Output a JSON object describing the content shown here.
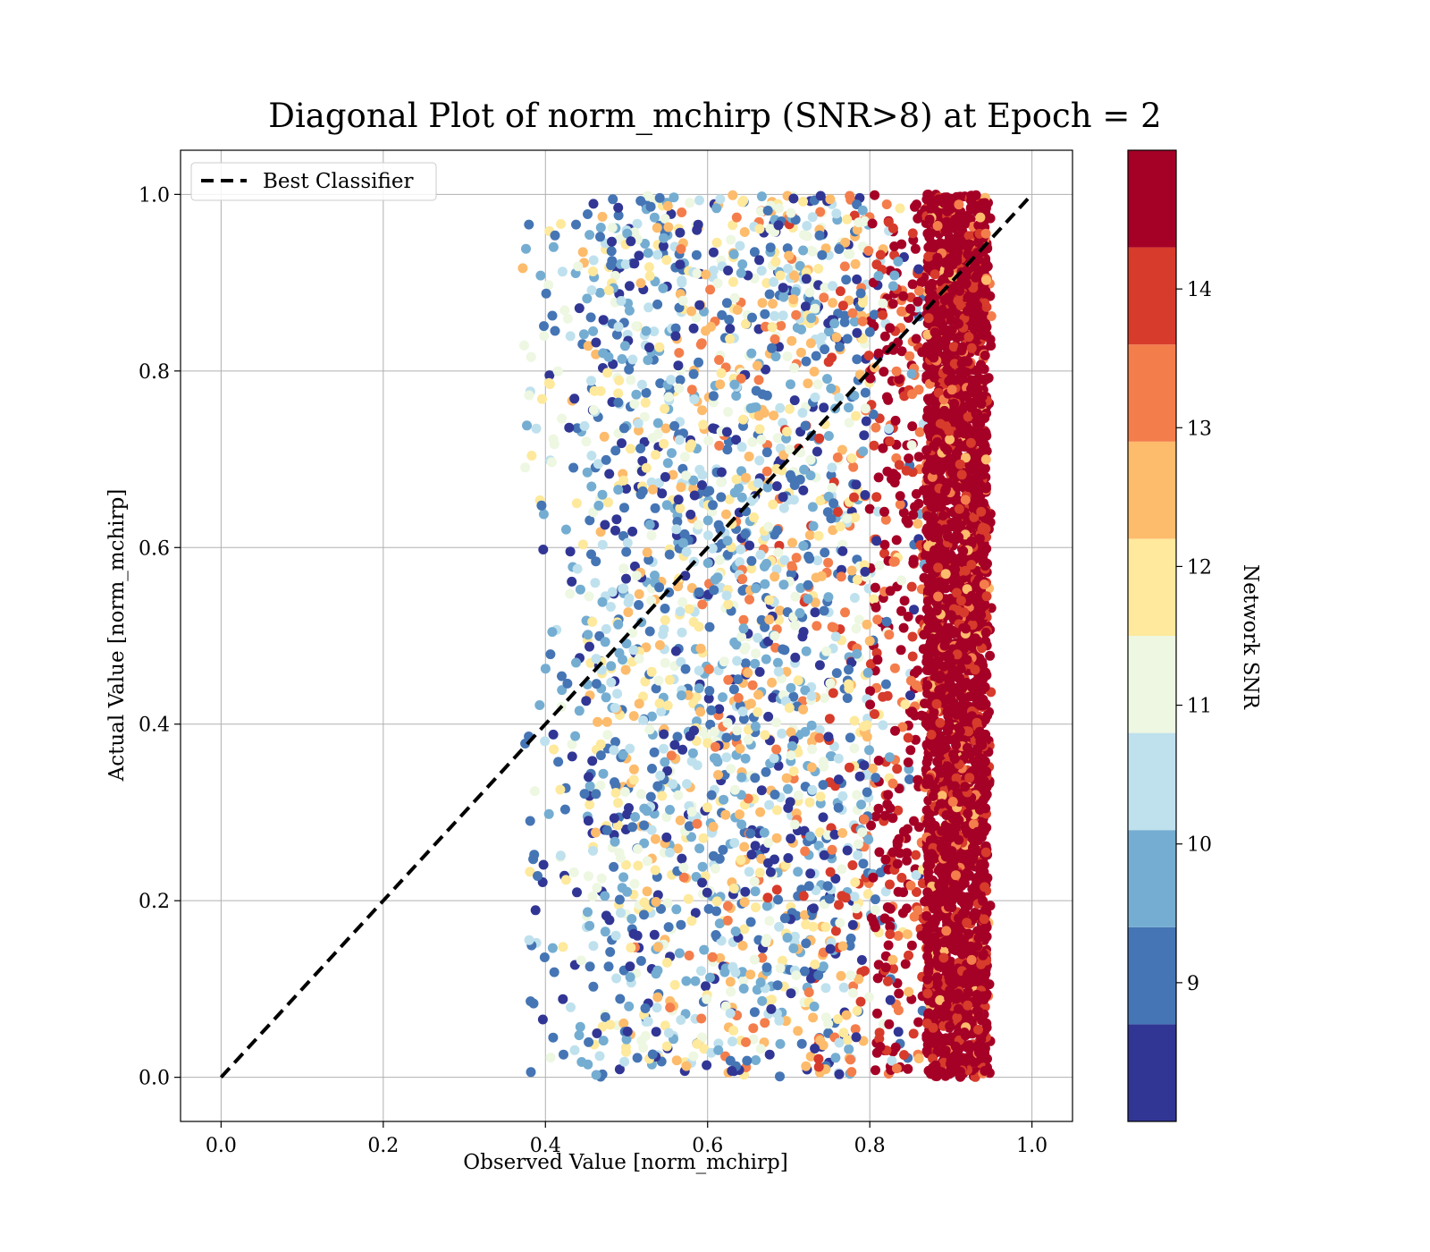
{
  "chart_data": {
    "type": "scatter",
    "title": "Diagonal Plot of norm_mchirp (SNR>8) at Epoch = 2",
    "xlabel": "Observed Value [norm_mchirp]",
    "ylabel": "Actual Value [norm_mchirp]",
    "xlim": [
      -0.05,
      1.05
    ],
    "ylim": [
      -0.05,
      1.05
    ],
    "x_ticks": [
      "0.0",
      "0.2",
      "0.4",
      "0.6",
      "0.8",
      "1.0"
    ],
    "y_ticks": [
      "0.0",
      "0.2",
      "0.4",
      "0.6",
      "0.8",
      "1.0"
    ],
    "grid": true,
    "legend": {
      "placement": "upper-left",
      "entries": [
        "Best Classifier"
      ]
    },
    "reference_line": {
      "name": "Best Classifier",
      "x": [
        0.0,
        1.0
      ],
      "y": [
        0.0,
        1.0
      ],
      "style": "dashed",
      "color": "#000000"
    },
    "colorbar": {
      "label": "Network SNR",
      "range": [
        8.0,
        15.0
      ],
      "tick_labels": [
        "9",
        "10",
        "11",
        "12",
        "13",
        "14"
      ],
      "levels": [
        {
          "from": 8.0,
          "to": 8.7,
          "color": "#313695"
        },
        {
          "from": 8.7,
          "to": 9.4,
          "color": "#4575b4"
        },
        {
          "from": 9.4,
          "to": 10.1,
          "color": "#74add1"
        },
        {
          "from": 10.1,
          "to": 10.8,
          "color": "#bfe1ee"
        },
        {
          "from": 10.8,
          "to": 11.5,
          "color": "#edf7e1"
        },
        {
          "from": 11.5,
          "to": 12.2,
          "color": "#fee99c"
        },
        {
          "from": 12.2,
          "to": 12.9,
          "color": "#fdbb6c"
        },
        {
          "from": 12.9,
          "to": 13.6,
          "color": "#f47d4c"
        },
        {
          "from": 13.6,
          "to": 14.3,
          "color": "#d73b2b"
        },
        {
          "from": 14.3,
          "to": 15.0,
          "color": "#a50026"
        }
      ]
    },
    "scatter_distribution": {
      "x_range": [
        0.37,
        0.95
      ],
      "y_range": [
        0.0,
        1.0
      ],
      "dense_band_x": [
        0.87,
        0.94
      ]
    }
  }
}
